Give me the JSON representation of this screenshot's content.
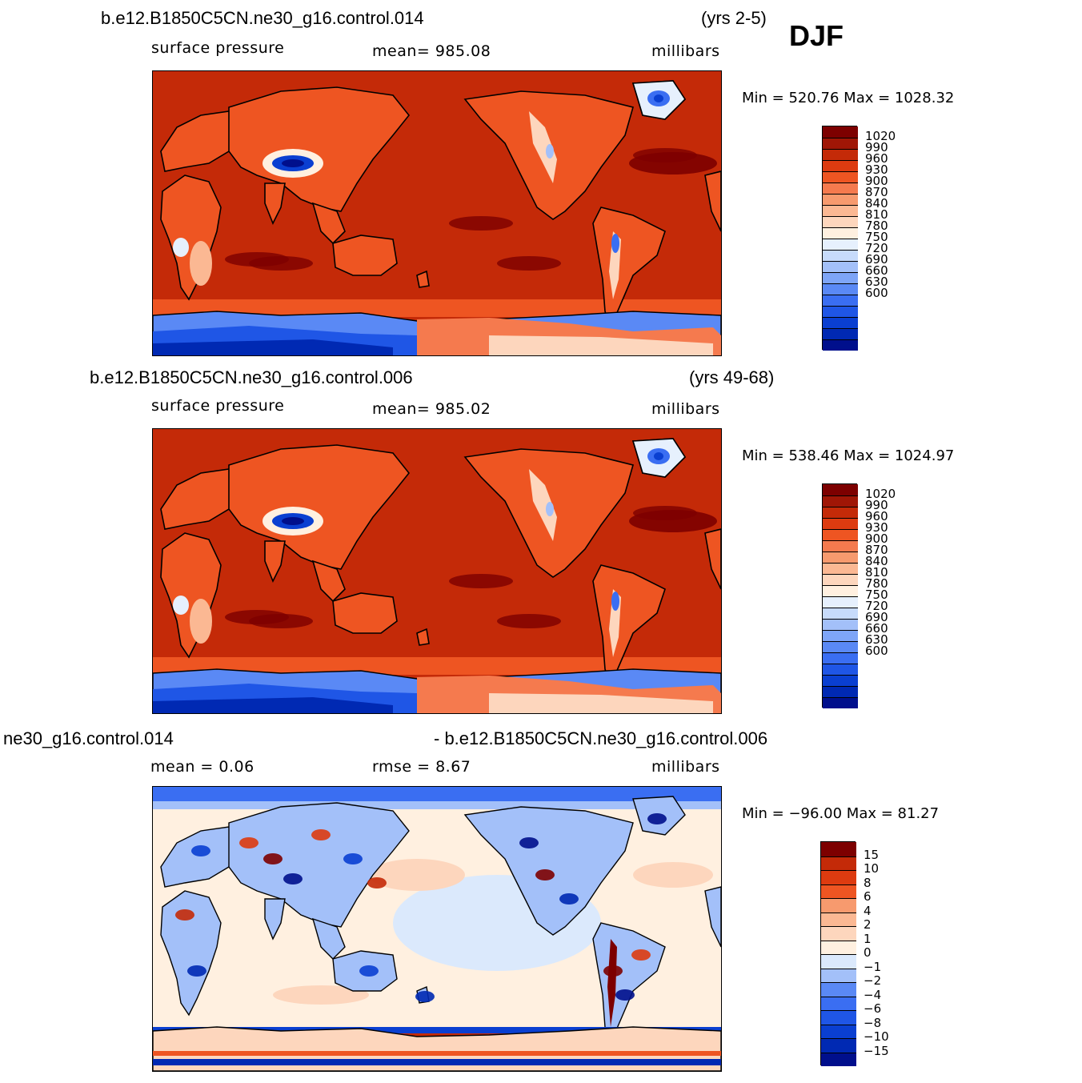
{
  "season": "DJF",
  "colors": {
    "abs_scale": [
      "#000f8c",
      "#0029b3",
      "#0a3fd1",
      "#1f56e6",
      "#3a6ef2",
      "#5a89f5",
      "#7ea5f7",
      "#a3c0f9",
      "#c7dbfb",
      "#e6f0fd",
      "#fff0e0",
      "#fdd6bd",
      "#fbb893",
      "#f79a6e",
      "#f57a4e",
      "#ee5522",
      "#dd3b10",
      "#c42a08",
      "#a01606",
      "#7d0000"
    ],
    "diff_scale": [
      "#000f8c",
      "#0029b3",
      "#0a3fd1",
      "#1f56e6",
      "#3a6ef2",
      "#5a89f5",
      "#a3c0f9",
      "#dbe9fc",
      "#fff0e0",
      "#fdd6bd",
      "#fbb893",
      "#f79a6e",
      "#ee5522",
      "#dd3b10",
      "#c42a08",
      "#7d0000"
    ]
  },
  "panels": [
    {
      "case_name": "b.e12.B1850C5CN.ne30_g16.control.014",
      "years": "(yrs 2-5)",
      "variable": "surface pressure",
      "mean_text": "mean=  985.08",
      "units": "millibars",
      "minmax": "Min  =  520.76  Max  =  1028.32",
      "legend_labels": [
        "1020",
        "990",
        "960",
        "930",
        "900",
        "870",
        "840",
        "810",
        "780",
        "750",
        "720",
        "690",
        "660",
        "630",
        "600"
      ]
    },
    {
      "case_name": "b.e12.B1850C5CN.ne30_g16.control.006",
      "years": "(yrs 49-68)",
      "variable": "surface pressure",
      "mean_text": "mean=  985.02",
      "units": "millibars",
      "minmax": "Min  =  538.46  Max  =  1024.97",
      "legend_labels": [
        "1020",
        "990",
        "960",
        "930",
        "900",
        "870",
        "840",
        "810",
        "780",
        "750",
        "720",
        "690",
        "660",
        "630",
        "600"
      ]
    },
    {
      "case_name_left": "ne30_g16.control.014",
      "case_name_right": "- b.e12.B1850C5CN.ne30_g16.control.006",
      "mean_text": "mean  =     0.06",
      "rmse_text": "rmse  =     8.67",
      "units": "millibars",
      "minmax": "Min  =  −96.00  Max  =    81.27",
      "legend_labels": [
        "15",
        "10",
        "8",
        "6",
        "4",
        "2",
        "1",
        "0",
        "−1",
        "−2",
        "−4",
        "−6",
        "−8",
        "−10",
        "−15"
      ]
    }
  ]
}
